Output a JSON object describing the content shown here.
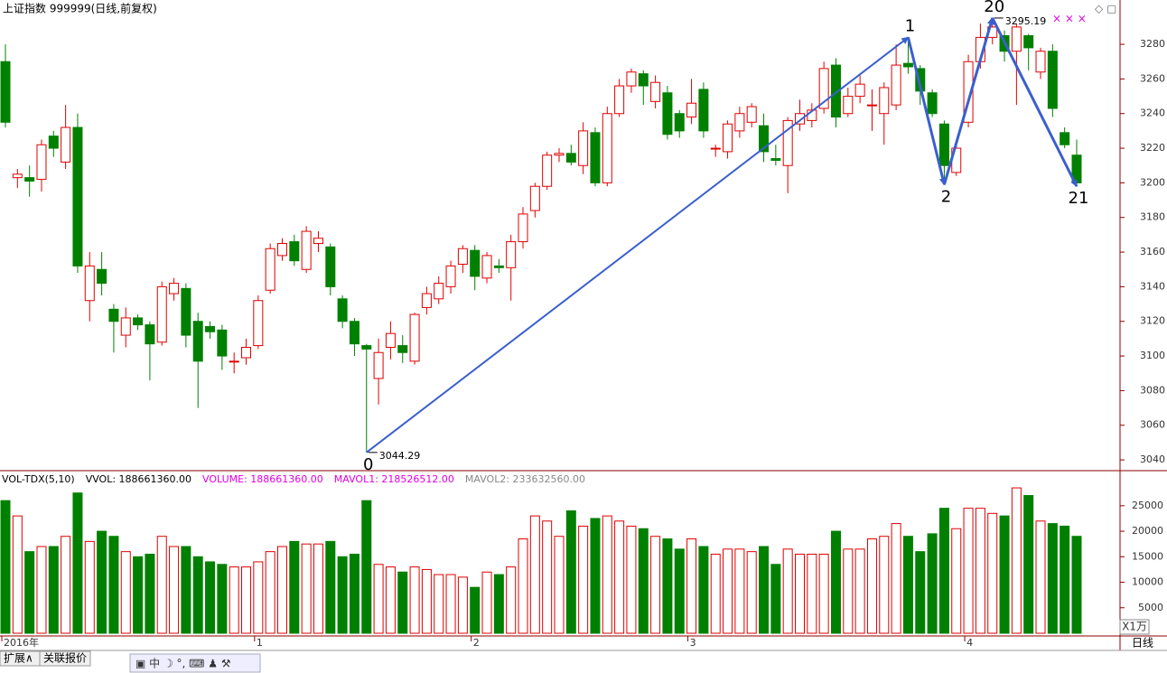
{
  "chart_data": {
    "type": "candlestick",
    "title": "上证指数 999999(日线,前复权)",
    "categories": [
      "2016年",
      null,
      null,
      null,
      null,
      null,
      null,
      null,
      null,
      null,
      null,
      null,
      null,
      null,
      null,
      null,
      null,
      null,
      null,
      null,
      null,
      "1",
      null,
      null,
      null,
      null,
      null,
      null,
      null,
      null,
      null,
      null,
      null,
      null,
      null,
      null,
      null,
      null,
      null,
      "2",
      null,
      null,
      null,
      null,
      null,
      null,
      null,
      null,
      null,
      null,
      null,
      null,
      null,
      null,
      null,
      null,
      null,
      "3",
      null,
      null,
      null,
      null,
      null,
      null,
      null,
      null,
      null,
      null,
      null,
      null,
      null,
      null,
      null,
      null,
      null,
      null,
      null,
      null,
      null,
      null,
      "4",
      null,
      null,
      null,
      null,
      null,
      null,
      null,
      null,
      null
    ],
    "open": [
      3270,
      3203,
      3203,
      3202,
      3227,
      3212,
      3232,
      3132,
      3150,
      3127,
      3112,
      3122,
      3118,
      3108,
      3136,
      3139,
      3120,
      3117,
      3115,
      3097,
      3099,
      3106,
      3138,
      3158,
      3166,
      3150,
      3165,
      3163,
      3133,
      3120,
      3106,
      3087,
      3105,
      3106,
      3097,
      3128,
      3133,
      3140,
      3153,
      3161,
      3145,
      3152,
      3151,
      3166,
      3184,
      3198,
      3216,
      3217,
      3210,
      3229,
      3200,
      3240,
      3256,
      3263,
      3247,
      3252,
      3240,
      3238,
      3254,
      3220,
      3218,
      3230,
      3235,
      3233,
      3214,
      3210,
      3234,
      3236,
      3243,
      3268,
      3240,
      3250,
      3245,
      3240,
      3245,
      3269,
      3266,
      3252,
      3234,
      3206,
      3235,
      3270,
      3284,
      3285,
      3276,
      3285,
      3264,
      3276,
      3229,
      3216
    ],
    "close": [
      3235,
      3205,
      3201,
      3222,
      3220,
      3232,
      3152,
      3152,
      3142,
      3120,
      3122,
      3118,
      3107,
      3140,
      3142,
      3112,
      3097,
      3114,
      3100,
      3097,
      3105,
      3132,
      3162,
      3165,
      3155,
      3172,
      3168,
      3140,
      3120,
      3107,
      3104,
      3102,
      3113,
      3102,
      3124,
      3136,
      3142,
      3152,
      3162,
      3146,
      3158,
      3151,
      3166,
      3182,
      3198,
      3216,
      3217,
      3212,
      3230,
      3200,
      3240,
      3256,
      3264,
      3256,
      3258,
      3228,
      3230,
      3246,
      3230,
      3220,
      3234,
      3240,
      3244,
      3218,
      3213,
      3236,
      3240,
      3242,
      3266,
      3238,
      3250,
      3257,
      3245,
      3255,
      3268,
      3267,
      3253,
      3240,
      3210,
      3220,
      3270,
      3284,
      3290,
      3276,
      3290,
      3278,
      3276,
      3243,
      3222,
      3200
    ],
    "high": [
      3280,
      3208,
      3210,
      3225,
      3230,
      3245,
      3240,
      3160,
      3160,
      3130,
      3128,
      3124,
      3120,
      3143,
      3145,
      3142,
      3125,
      3120,
      3118,
      3102,
      3110,
      3135,
      3165,
      3168,
      3170,
      3175,
      3172,
      3165,
      3135,
      3122,
      3107,
      3110,
      3120,
      3112,
      3125,
      3140,
      3146,
      3155,
      3164,
      3164,
      3160,
      3156,
      3170,
      3186,
      3200,
      3218,
      3220,
      3222,
      3235,
      3232,
      3244,
      3260,
      3266,
      3265,
      3262,
      3256,
      3242,
      3260,
      3258,
      3222,
      3236,
      3244,
      3246,
      3240,
      3222,
      3238,
      3248,
      3246,
      3270,
      3272,
      3255,
      3262,
      3254,
      3258,
      3280,
      3284,
      3268,
      3254,
      3236,
      3222,
      3274,
      3292,
      3295.19,
      3288,
      3292,
      3286,
      3278,
      3280,
      3232,
      3225
    ],
    "low": [
      3232,
      3197,
      3192,
      3195,
      3215,
      3208,
      3148,
      3120,
      3135,
      3102,
      3105,
      3115,
      3086,
      3106,
      3132,
      3105,
      3070,
      3110,
      3092,
      3090,
      3095,
      3104,
      3136,
      3155,
      3152,
      3148,
      3160,
      3135,
      3116,
      3100,
      3044.29,
      3072,
      3098,
      3096,
      3095,
      3124,
      3130,
      3136,
      3148,
      3138,
      3142,
      3148,
      3132,
      3162,
      3180,
      3196,
      3212,
      3210,
      3205,
      3198,
      3198,
      3238,
      3252,
      3245,
      3243,
      3225,
      3226,
      3234,
      3226,
      3215,
      3214,
      3226,
      3232,
      3212,
      3210,
      3194,
      3230,
      3232,
      3240,
      3232,
      3238,
      3246,
      3230,
      3222,
      3242,
      3263,
      3245,
      3238,
      3199,
      3204,
      3232,
      3266,
      3280,
      3270,
      3245,
      3265,
      3260,
      3238,
      3220,
      3198
    ],
    "volume": [
      26000,
      23000,
      16000,
      17000,
      17000,
      19000,
      27500,
      18000,
      20000,
      19000,
      16000,
      15000,
      15500,
      19000,
      17000,
      17000,
      15000,
      14000,
      13500,
      13000,
      13000,
      14000,
      16000,
      17000,
      18000,
      17500,
      17500,
      18000,
      15000,
      15500,
      26000,
      13500,
      13000,
      12000,
      13000,
      12500,
      11500,
      11500,
      11000,
      9000,
      12000,
      11500,
      13000,
      18500,
      23000,
      22000,
      19000,
      24000,
      21000,
      22500,
      23000,
      22000,
      21000,
      20500,
      19000,
      18500,
      16500,
      18500,
      17000,
      15500,
      16500,
      16500,
      16000,
      17000,
      13500,
      16500,
      15500,
      15500,
      15500,
      20000,
      16500,
      16500,
      18500,
      19000,
      21500,
      19000,
      16000,
      19500,
      24500,
      20500,
      24500,
      24500,
      23500,
      23000,
      28500,
      27000,
      22000,
      21500,
      21000,
      19000
    ],
    "up_color": "#e00000",
    "down_color": "#008000",
    "ylim": [
      3034.3,
      3305.6
    ],
    "yticks": [
      3040,
      3060,
      3080,
      3100,
      3120,
      3140,
      3160,
      3180,
      3200,
      3220,
      3240,
      3260,
      3280
    ],
    "vol_ylim": [
      0,
      31700
    ],
    "vol_yticks": [
      5000,
      10000,
      15000,
      20000,
      25000
    ],
    "wave_points": [
      {
        "label": "0",
        "value": 3044.29
      },
      {
        "label": "1",
        "value": 3284
      },
      {
        "label": "2",
        "value": 3199
      },
      {
        "label": "20",
        "value": 3295.19
      },
      {
        "label": "21",
        "value": 3198
      }
    ],
    "price_labels": [
      3044.29,
      3295.19
    ],
    "wave_color": "#3a5fcd",
    "vol_header": [
      "VOL-TDX(5,10)",
      "VVOL: 188661360.00",
      "VOLUME: 188661360.00",
      "MAVOL1: 218526512.00",
      "MAVOL2: 233632560.00"
    ],
    "vol_unit": "X1万",
    "period": "日线",
    "tabs": [
      "扩展∧",
      "关联报价"
    ]
  }
}
